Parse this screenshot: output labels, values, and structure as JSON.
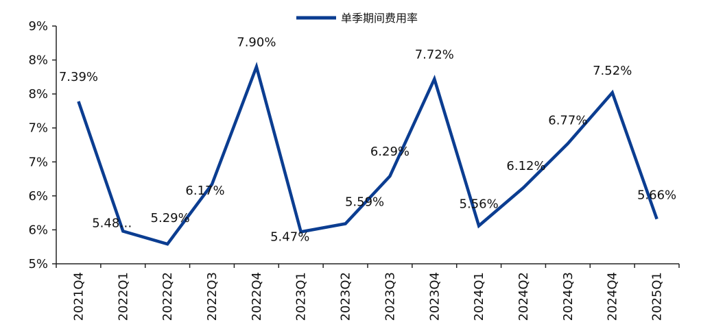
{
  "chart_data": {
    "type": "line",
    "title": "",
    "xlabel": "",
    "ylabel": "",
    "legend": "top-center",
    "grid": false,
    "color": "#0b3d91",
    "y_tick_labels": [
      "5%",
      "6%",
      "6%",
      "7%",
      "7%",
      "8%",
      "8%",
      "9%"
    ],
    "ylim": [
      5.0,
      8.5
    ],
    "categories": [
      "2021Q4",
      "2022Q1",
      "2022Q2",
      "2022Q3",
      "2022Q4",
      "2023Q1",
      "2023Q2",
      "2023Q3",
      "2023Q4",
      "2024Q1",
      "2024Q2",
      "2024Q3",
      "2024Q4",
      "2025Q1"
    ],
    "series": [
      {
        "name": "单季期间费用率",
        "values": [
          7.39,
          5.48,
          5.29,
          6.17,
          7.9,
          5.47,
          5.59,
          6.29,
          7.72,
          5.56,
          6.12,
          6.77,
          7.52,
          5.66
        ],
        "data_labels": [
          "7.39%",
          "5.48…",
          "5.29%",
          "6.17%",
          "7.90%",
          "5.47%",
          "5.59%",
          "6.29%",
          "7.72%",
          "5.56%",
          "6.12%",
          "6.77%",
          "7.52%",
          "5.66%"
        ]
      }
    ]
  }
}
